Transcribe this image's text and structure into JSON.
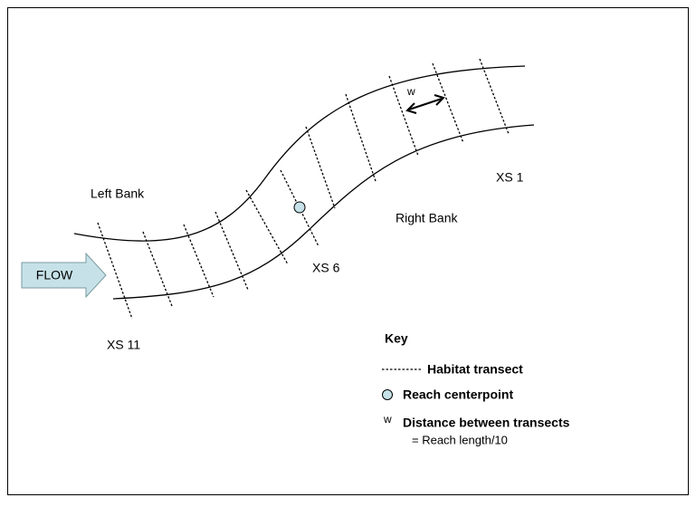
{
  "labels": {
    "left_bank": "Left Bank",
    "right_bank": "Right Bank",
    "flow": "FLOW",
    "xs_1": "XS 1",
    "xs_6": "XS 6",
    "xs_11": "XS 11",
    "w": "w"
  },
  "key": {
    "title": "Key",
    "habitat_transect": "Habitat transect",
    "reach_centerpoint": "Reach centerpoint",
    "w_symbol": "w",
    "distance": "Distance between transects",
    "distance_formula": "= Reach length/10"
  }
}
